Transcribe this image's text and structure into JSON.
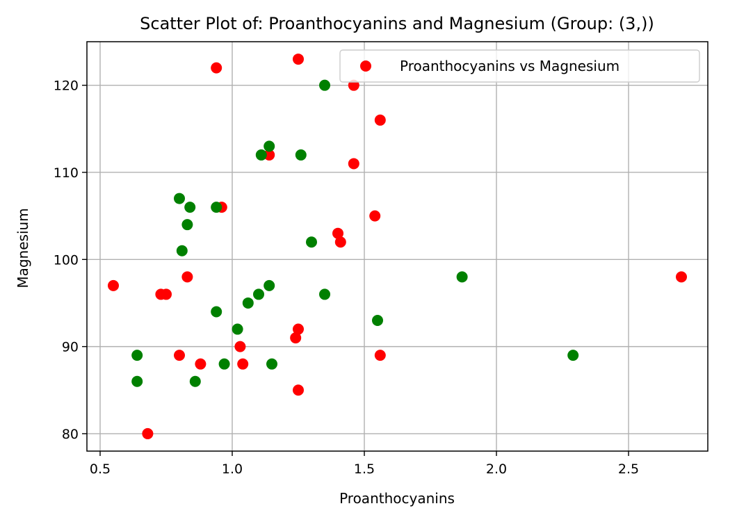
{
  "chart_data": {
    "type": "scatter",
    "title": "Scatter Plot of: Proanthocyanins and Magnesium (Group: (3,))",
    "xlabel": "Proanthocyanins",
    "ylabel": "Magnesium",
    "xlim": [
      0.45,
      2.8
    ],
    "ylim": [
      78,
      125
    ],
    "xticks": [
      0.5,
      1.0,
      1.5,
      2.0,
      2.5
    ],
    "xtick_labels": [
      "0.5",
      "1.0",
      "1.5",
      "2.0",
      "2.5"
    ],
    "yticks": [
      80,
      90,
      100,
      110,
      120
    ],
    "ytick_labels": [
      "80",
      "90",
      "100",
      "110",
      "120"
    ],
    "grid": true,
    "legend": {
      "position": "top-right",
      "entries": [
        "Proanthocyanins vs Magnesium"
      ]
    },
    "series": [
      {
        "name": "Proanthocyanins vs Magnesium",
        "color": "#ff0000",
        "points": [
          [
            0.55,
            97
          ],
          [
            0.68,
            80
          ],
          [
            0.73,
            96
          ],
          [
            0.75,
            96
          ],
          [
            0.8,
            89
          ],
          [
            0.83,
            98
          ],
          [
            0.88,
            88
          ],
          [
            0.94,
            122
          ],
          [
            0.96,
            106
          ],
          [
            1.03,
            90
          ],
          [
            1.04,
            88
          ],
          [
            1.14,
            112
          ],
          [
            1.24,
            91
          ],
          [
            1.25,
            123
          ],
          [
            1.25,
            92
          ],
          [
            1.25,
            85
          ],
          [
            1.4,
            103
          ],
          [
            1.41,
            102
          ],
          [
            1.46,
            120
          ],
          [
            1.46,
            111
          ],
          [
            1.54,
            105
          ],
          [
            1.56,
            116
          ],
          [
            1.56,
            89
          ],
          [
            2.7,
            98
          ]
        ]
      },
      {
        "color": "#008000",
        "points": [
          [
            0.64,
            89
          ],
          [
            0.64,
            86
          ],
          [
            0.8,
            107
          ],
          [
            0.81,
            101
          ],
          [
            0.83,
            104
          ],
          [
            0.84,
            106
          ],
          [
            0.86,
            86
          ],
          [
            0.94,
            106
          ],
          [
            0.94,
            94
          ],
          [
            0.97,
            88
          ],
          [
            1.02,
            92
          ],
          [
            1.06,
            95
          ],
          [
            1.1,
            96
          ],
          [
            1.11,
            112
          ],
          [
            1.14,
            113
          ],
          [
            1.14,
            97
          ],
          [
            1.15,
            88
          ],
          [
            1.26,
            112
          ],
          [
            1.3,
            102
          ],
          [
            1.35,
            120
          ],
          [
            1.35,
            96
          ],
          [
            1.55,
            93
          ],
          [
            1.87,
            98
          ],
          [
            2.29,
            89
          ]
        ]
      }
    ]
  }
}
